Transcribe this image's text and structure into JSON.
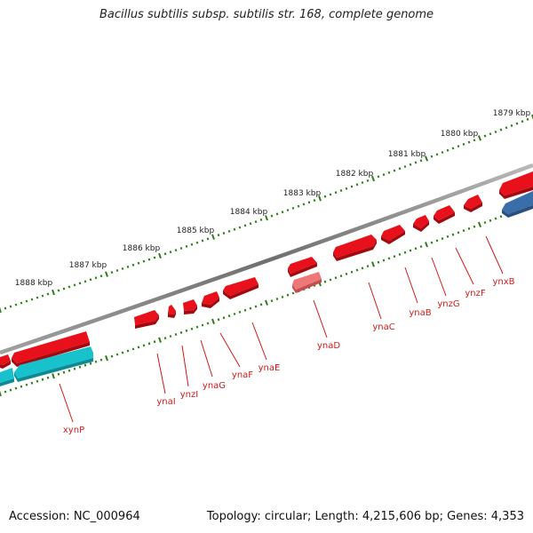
{
  "title": "Bacillus subtilis subsp. subtilis str. 168, complete genome",
  "footer": {
    "accession": "Accession: NC_000964",
    "summary": "Topology: circular; Length: 4,215,606 bp; Genes: 4,353"
  },
  "colors": {
    "backbone": "#777777",
    "tick": "#2e7d1a",
    "gene_forward": "#e8101a",
    "gene_forward_light": "#ee7878",
    "gene_reverse": "#18c2cc",
    "gene_other": "#3a6ea8",
    "label": "#d11a1a",
    "scale_label": "#222222"
  },
  "scale_labels": [
    "1888 kbp",
    "1887 kbp",
    "1886 kbp",
    "1885 kbp",
    "1884 kbp",
    "1883 kbp",
    "1882 kbp",
    "1881 kbp",
    "1880 kbp",
    "1879 kbp"
  ],
  "gene_labels": [
    "xynP",
    "ynaI",
    "ynzI",
    "ynaG",
    "ynaF",
    "ynaE",
    "ynaD",
    "ynaC",
    "ynaB",
    "ynzG",
    "ynzF",
    "ynxB"
  ]
}
